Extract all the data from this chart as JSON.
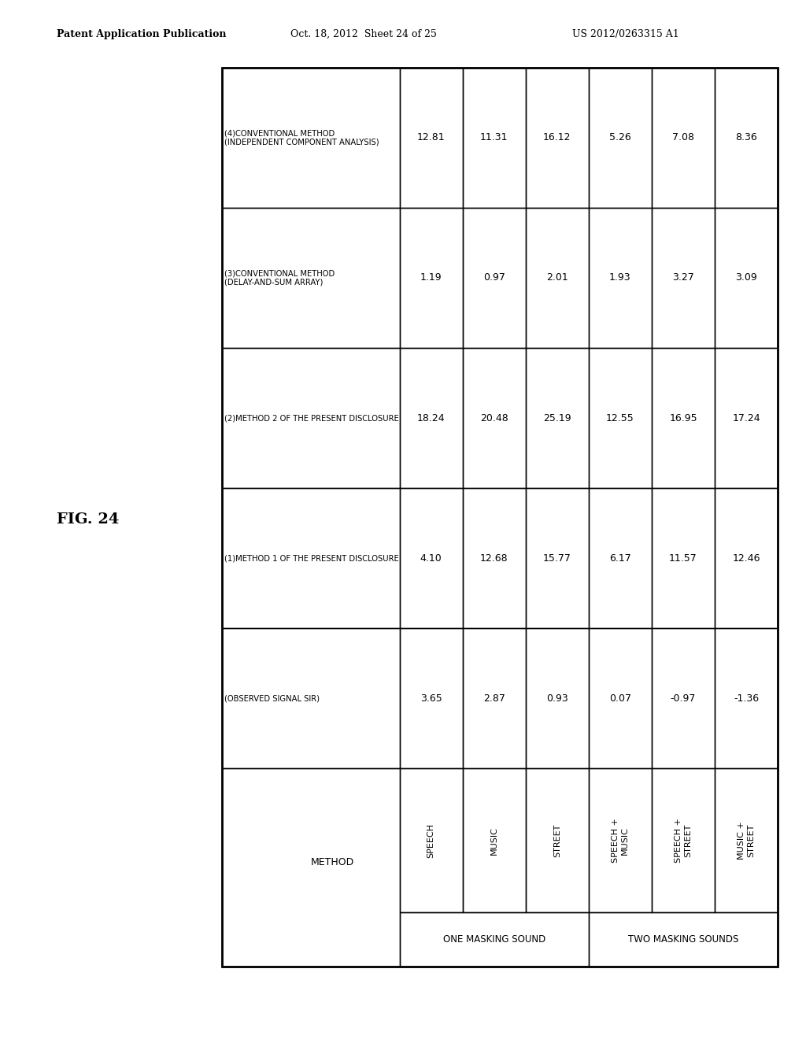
{
  "title": "FIG. 24",
  "header_line1": "Patent Application Publication",
  "header_line2": "Oct. 18, 2012  Sheet 24 of 25",
  "header_line3": "US 2012/0263315 A1",
  "col_group1": "ONE MASKING SOUND",
  "col_group2": "TWO MASKING SOUNDS",
  "col_sub_headers": [
    "SPEECH",
    "MUSIC",
    "STREET",
    "SPEECH +\nMUSIC",
    "SPEECH +\nSTREET",
    "MUSIC +\nSTREET"
  ],
  "row_labels": [
    "(OBSERVED SIGNAL SIR)",
    "(1)METHOD 1 OF THE PRESENT DISCLOSURE",
    "(2)METHOD 2 OF THE PRESENT DISCLOSURE",
    "(3)CONVENTIONAL METHOD\n(DELAY-AND-SUM ARRAY)",
    "(4)CONVENTIONAL METHOD\n(INDEPENDENT COMPONENT ANALYSIS)"
  ],
  "data": [
    [
      3.65,
      2.87,
      0.93,
      0.07,
      -0.97,
      -1.36
    ],
    [
      4.1,
      12.68,
      15.77,
      6.17,
      11.57,
      12.46
    ],
    [
      18.24,
      20.48,
      25.19,
      12.55,
      16.95,
      17.24
    ],
    [
      1.19,
      0.97,
      2.01,
      1.93,
      3.27,
      3.09
    ],
    [
      12.81,
      11.31,
      16.12,
      5.26,
      7.08,
      8.36
    ]
  ],
  "bg_color": "#ffffff",
  "text_color": "#000000",
  "line_color": "#000000",
  "font_size_body": 9,
  "font_size_header": 9,
  "font_size_title": 14,
  "font_size_patent": 9
}
